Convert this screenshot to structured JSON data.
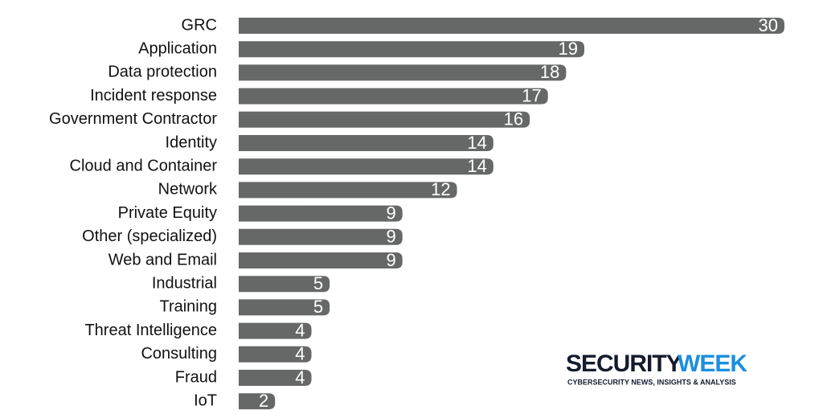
{
  "chart_data": {
    "type": "bar",
    "orientation": "horizontal",
    "categories": [
      "GRC",
      "Application",
      "Data protection",
      "Incident response",
      "Government Contractor",
      "Identity",
      "Cloud and Container",
      "Network",
      "Private Equity",
      "Other (specialized)",
      "Web and Email",
      "Industrial",
      "Training",
      "Threat Intelligence",
      "Consulting",
      "Fraud",
      "IoT"
    ],
    "values": [
      30,
      19,
      18,
      17,
      16,
      14,
      14,
      12,
      9,
      9,
      9,
      5,
      5,
      4,
      4,
      4,
      2
    ],
    "color": "#666867",
    "xlim": [
      0,
      30
    ]
  },
  "logo": {
    "primary": "SECURITY",
    "accent": "WEEK",
    "tagline": "CYBERSECURITY NEWS, INSIGHTS & ANALYSIS"
  }
}
